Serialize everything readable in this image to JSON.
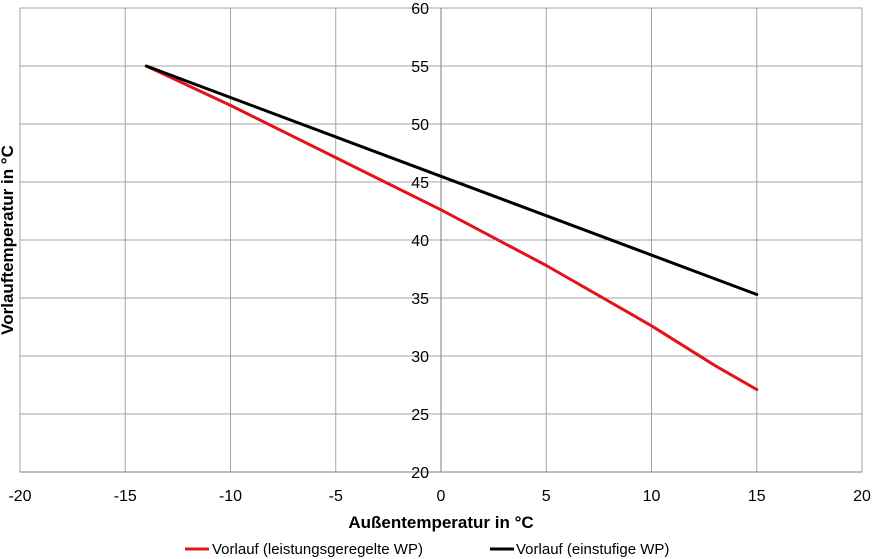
{
  "chart_data": {
    "type": "line",
    "title": "",
    "xlabel": "Außentemperatur  in °C",
    "ylabel": "Vorlauftemperatur  in °C",
    "xlim": [
      -20,
      20
    ],
    "ylim": [
      20,
      60
    ],
    "x_ticks": [
      "-20",
      "-15",
      "-10",
      "-5",
      "0",
      "5",
      "10",
      "15",
      "20"
    ],
    "y_ticks": [
      "20",
      "25",
      "30",
      "35",
      "40",
      "45",
      "50",
      "55",
      "60"
    ],
    "grid": true,
    "legend_position": "bottom",
    "series": [
      {
        "name": "Vorlauf (leistungsgeregelte WP)",
        "color": "#e3131b",
        "x": [
          -14,
          -10,
          -5,
          0,
          5,
          10,
          13,
          15
        ],
        "y": [
          55,
          51.6,
          47.1,
          42.6,
          37.8,
          32.6,
          29.2,
          27.1
        ]
      },
      {
        "name": "Vorlauf (einstufige WP)",
        "color": "#000000",
        "x": [
          -14,
          15
        ],
        "y": [
          55,
          35.3
        ]
      }
    ]
  }
}
